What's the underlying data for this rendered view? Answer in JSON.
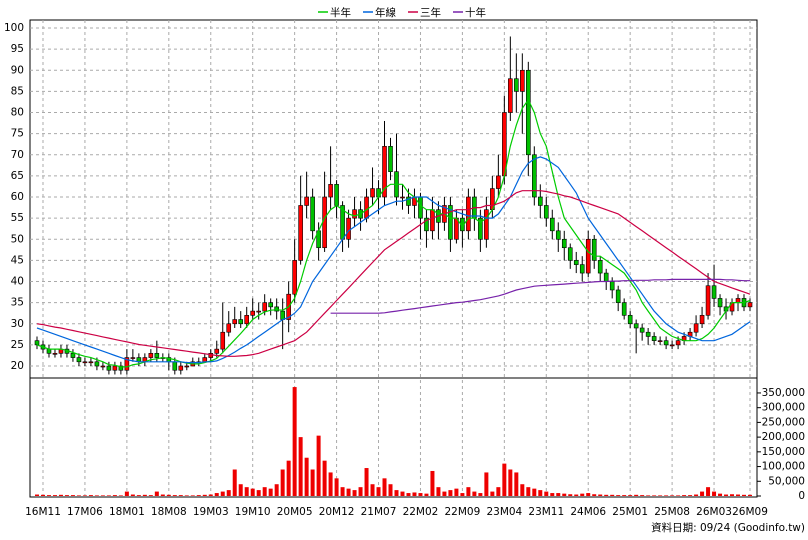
{
  "chart_data": {
    "type": "candlestick",
    "categories": [
      null,
      "16M11",
      null,
      null,
      null,
      null,
      null,
      null,
      "17M06",
      null,
      null,
      null,
      null,
      null,
      null,
      "18M01",
      null,
      null,
      null,
      null,
      null,
      null,
      "18M08",
      null,
      null,
      null,
      null,
      null,
      null,
      "19M03",
      null,
      null,
      null,
      null,
      null,
      null,
      "19M10",
      null,
      null,
      null,
      null,
      null,
      null,
      "20M05",
      null,
      null,
      null,
      null,
      null,
      null,
      "20M12",
      null,
      null,
      null,
      null,
      null,
      null,
      "21M07",
      null,
      null,
      null,
      null,
      null,
      null,
      "22M02",
      null,
      null,
      null,
      null,
      null,
      null,
      "22M09",
      null,
      null,
      null,
      null,
      null,
      null,
      "23M04",
      null,
      null,
      null,
      null,
      null,
      null,
      "23M11",
      null,
      null,
      null,
      null,
      null,
      null,
      "24M06",
      null,
      null,
      null,
      null,
      null,
      null,
      "25M01",
      null,
      null,
      null,
      null,
      null,
      null,
      "25M08",
      null,
      null,
      null,
      null,
      null,
      null,
      "26M03",
      null,
      null,
      null,
      null,
      null,
      "26M09"
    ],
    "candles": {
      "up_color": "#ff0000",
      "down_color": "#00c000",
      "open": [
        26,
        25,
        24,
        23,
        23,
        24,
        23,
        22,
        21,
        21,
        21,
        20,
        20,
        19,
        20,
        19,
        22,
        22,
        21,
        22,
        23,
        22,
        22,
        21,
        19,
        20,
        20,
        21,
        21,
        22,
        23,
        24,
        28,
        30,
        31,
        30,
        32,
        33,
        33,
        35,
        34,
        33,
        31,
        37,
        45,
        58,
        60,
        52,
        48,
        60,
        63,
        58,
        50,
        55,
        57,
        55,
        60,
        62,
        60,
        72,
        66,
        60,
        60,
        58,
        60,
        55,
        52,
        57,
        54,
        58,
        50,
        55,
        52,
        60,
        55,
        50,
        57,
        62,
        65,
        80,
        88,
        85,
        90,
        70,
        60,
        58,
        55,
        52,
        50,
        48,
        45,
        44,
        42,
        50,
        45,
        42,
        40,
        38,
        35,
        32,
        30,
        29,
        28,
        27,
        26,
        26,
        25,
        25,
        26,
        27,
        28,
        30,
        32,
        39,
        36,
        34,
        33,
        35,
        36,
        34
      ],
      "high": [
        27,
        26,
        25,
        24,
        25,
        25,
        24,
        23,
        22,
        22,
        22,
        21,
        21,
        21,
        21,
        24,
        24,
        23,
        23,
        24,
        26,
        23,
        23,
        22,
        21,
        21,
        22,
        22,
        23,
        24,
        26,
        35,
        33,
        34,
        33,
        34,
        36,
        35,
        37,
        36,
        36,
        36,
        40,
        50,
        65,
        66,
        62,
        54,
        66,
        72,
        64,
        59,
        57,
        60,
        59,
        62,
        67,
        64,
        78,
        74,
        75,
        63,
        62,
        62,
        61,
        57,
        60,
        59,
        60,
        60,
        57,
        57,
        62,
        62,
        57,
        60,
        65,
        70,
        84,
        98,
        94,
        94,
        92,
        72,
        63,
        60,
        57,
        54,
        52,
        49,
        47,
        46,
        52,
        51,
        46,
        43,
        41,
        39,
        36,
        33,
        31,
        30,
        29,
        28,
        27,
        27,
        26,
        27,
        28,
        29,
        32,
        34,
        42,
        44,
        37,
        36,
        36,
        37,
        37,
        36
      ],
      "low": [
        24,
        23,
        22,
        22,
        22,
        22,
        21,
        20,
        20,
        20,
        19,
        19,
        18,
        18,
        18,
        18,
        21,
        20,
        20,
        21,
        21,
        21,
        19,
        18,
        18,
        19,
        20,
        20,
        21,
        21,
        22,
        23,
        27,
        29,
        29,
        29,
        31,
        31,
        32,
        32,
        31,
        24,
        28,
        35,
        44,
        55,
        50,
        45,
        47,
        57,
        55,
        47,
        48,
        53,
        52,
        54,
        58,
        56,
        58,
        64,
        58,
        57,
        56,
        55,
        50,
        48,
        50,
        50,
        52,
        47,
        49,
        48,
        50,
        52,
        47,
        48,
        55,
        60,
        63,
        78,
        80,
        75,
        65,
        58,
        55,
        53,
        50,
        47,
        45,
        43,
        42,
        40,
        41,
        43,
        40,
        38,
        36,
        33,
        31,
        29,
        23,
        26,
        25,
        25,
        25,
        24,
        24,
        24,
        25,
        26,
        27,
        29,
        31,
        34,
        32,
        31,
        32,
        33,
        33,
        33
      ],
      "close": [
        25,
        24,
        23,
        23,
        24,
        23,
        22,
        21,
        21,
        21,
        20,
        20,
        19,
        20,
        19,
        22,
        22,
        21,
        22,
        23,
        22,
        22,
        21,
        19,
        20,
        20,
        21,
        21,
        22,
        23,
        24,
        28,
        30,
        31,
        30,
        32,
        33,
        33,
        35,
        34,
        33,
        31,
        37,
        45,
        58,
        60,
        52,
        48,
        60,
        63,
        58,
        50,
        55,
        57,
        55,
        60,
        62,
        60,
        72,
        66,
        60,
        60,
        58,
        60,
        55,
        52,
        57,
        54,
        58,
        50,
        55,
        52,
        60,
        55,
        50,
        57,
        62,
        65,
        80,
        88,
        85,
        90,
        70,
        60,
        58,
        55,
        52,
        50,
        48,
        45,
        44,
        42,
        50,
        45,
        42,
        40,
        38,
        35,
        32,
        30,
        29,
        28,
        27,
        26,
        26,
        25,
        25,
        26,
        27,
        28,
        30,
        32,
        39,
        36,
        34,
        33,
        35,
        36,
        34,
        35
      ]
    },
    "series": [
      {
        "name": "半年",
        "color": "#00cc00",
        "values": [
          25,
          24.5,
          24,
          24,
          24,
          23.7,
          23.2,
          22.7,
          22.3,
          22,
          21.5,
          21,
          20.3,
          20.2,
          19.8,
          19.8,
          20.3,
          20.5,
          21,
          21.5,
          21.7,
          22,
          21.8,
          21.5,
          21,
          20.7,
          20.5,
          20.5,
          20.8,
          21.2,
          21.8,
          23.2,
          24.7,
          26.2,
          27.7,
          29.3,
          31,
          32,
          32.8,
          33.2,
          33.3,
          33.2,
          34,
          36,
          40,
          45,
          49,
          52,
          55,
          57,
          58,
          57,
          56,
          55.5,
          56,
          57,
          58,
          60,
          62,
          63,
          63,
          63,
          61,
          60,
          58,
          57,
          57,
          56,
          56,
          55,
          55,
          53,
          55,
          55,
          54,
          55,
          57,
          60,
          65,
          72,
          77,
          81,
          83,
          80,
          75,
          72,
          66,
          60,
          55,
          53,
          51,
          49,
          47,
          46,
          46,
          45,
          44,
          43,
          42,
          40,
          38,
          35,
          33,
          31,
          29,
          28,
          27,
          26.5,
          26,
          26,
          26,
          26.5,
          27.5,
          29,
          31,
          33,
          35,
          35,
          35,
          35.5
        ]
      },
      {
        "name": "年線",
        "color": "#0066dd",
        "values": [
          29,
          28.5,
          28,
          27.5,
          27,
          26.5,
          26,
          25.5,
          25,
          24.5,
          24,
          23.5,
          23,
          22.5,
          22,
          21.5,
          21.2,
          21,
          21,
          21,
          21,
          21,
          21,
          21,
          21,
          20.8,
          20.8,
          20.8,
          21,
          21,
          21.2,
          21.8,
          22.5,
          23.3,
          24.2,
          25,
          26,
          27,
          28,
          29,
          30,
          31,
          31.5,
          32.5,
          34,
          37,
          40,
          42,
          44,
          46,
          48,
          50,
          52,
          53,
          54,
          55,
          56,
          57,
          58,
          58.5,
          59,
          59,
          59.5,
          60,
          60,
          60,
          59,
          58,
          57.5,
          57,
          56.5,
          56,
          55.5,
          55.5,
          55.5,
          55,
          55,
          56,
          58,
          60,
          63,
          66,
          68,
          69,
          69.5,
          69,
          68,
          67,
          65,
          63,
          61,
          58,
          55,
          53,
          51,
          49,
          47,
          45,
          43,
          41,
          39,
          37,
          35,
          33,
          31.5,
          30,
          29,
          28,
          27.5,
          27,
          26.5,
          26,
          26,
          26,
          26.5,
          27,
          27.5,
          28.5,
          29.5,
          30.5
        ]
      },
      {
        "name": "三年",
        "color": "#cc0044",
        "values": [
          30,
          29.8,
          29.5,
          29.2,
          29,
          28.7,
          28.4,
          28.1,
          27.8,
          27.5,
          27.2,
          26.9,
          26.6,
          26.3,
          26,
          25.7,
          25.4,
          25.1,
          24.9,
          24.7,
          24.5,
          24.3,
          24.1,
          23.9,
          23.7,
          23.5,
          23.3,
          23.1,
          22.9,
          22.7,
          22.5,
          22.4,
          22.3,
          22.3,
          22.4,
          22.5,
          22.7,
          23,
          23.5,
          24,
          24.5,
          25,
          25.5,
          26,
          27,
          28,
          29.5,
          31,
          32.5,
          34,
          35.5,
          37,
          38.5,
          40,
          41.5,
          43,
          44.5,
          46,
          47.5,
          48.5,
          49.5,
          50.5,
          51.5,
          52.5,
          53.5,
          54.5,
          55,
          55.5,
          56,
          56.5,
          57,
          57,
          57,
          57.5,
          57.5,
          58,
          58,
          58.5,
          59,
          60,
          61,
          61.5,
          61.5,
          61.5,
          61.5,
          61.3,
          61,
          60.7,
          60.3,
          60,
          59.5,
          59,
          58.5,
          58,
          57.5,
          57,
          56.5,
          56,
          55,
          54,
          53,
          52,
          51,
          50,
          49,
          48,
          47,
          46,
          45,
          44,
          43,
          42,
          41,
          40,
          39.5,
          39,
          38.5,
          38,
          37.5,
          37
        ]
      },
      {
        "name": "十年",
        "color": "#7722aa",
        "values": [
          null,
          null,
          null,
          null,
          null,
          null,
          null,
          null,
          null,
          null,
          null,
          null,
          null,
          null,
          null,
          null,
          null,
          null,
          null,
          null,
          null,
          null,
          null,
          null,
          null,
          null,
          null,
          null,
          null,
          null,
          null,
          null,
          null,
          null,
          null,
          null,
          null,
          null,
          null,
          null,
          null,
          null,
          null,
          null,
          null,
          null,
          null,
          null,
          null,
          32.5,
          32.5,
          32.5,
          32.5,
          32.5,
          32.5,
          32.5,
          32.5,
          32.5,
          32.6,
          32.8,
          33,
          33.2,
          33.4,
          33.6,
          33.8,
          34,
          34.2,
          34.4,
          34.6,
          34.8,
          35,
          35.1,
          35.3,
          35.5,
          35.7,
          36,
          36.3,
          36.6,
          37,
          37.5,
          38,
          38.3,
          38.6,
          38.9,
          39,
          39.1,
          39.2,
          39.3,
          39.4,
          39.5,
          39.6,
          39.7,
          39.8,
          39.9,
          40,
          40,
          40.1,
          40.1,
          40.2,
          40.2,
          40.3,
          40.3,
          40.3,
          40.4,
          40.4,
          40.4,
          40.5,
          40.5,
          40.5,
          40.5,
          40.5,
          40.5,
          40.5,
          40.5,
          40.5,
          40.4,
          40.4,
          40.3,
          40.2,
          40.2
        ]
      }
    ],
    "ylim": [
      17.4,
      101.9
    ],
    "yticks": [
      20,
      25,
      30,
      35,
      40,
      45,
      50,
      55,
      60,
      65,
      70,
      75,
      80,
      85,
      90,
      95,
      100
    ],
    "grid": true,
    "volume": {
      "color": "#ee0000",
      "values": [
        5000,
        4000,
        3000,
        3000,
        4000,
        3000,
        3000,
        2000,
        2000,
        3000,
        2000,
        2000,
        2000,
        3000,
        2000,
        15000,
        5000,
        3000,
        4000,
        3000,
        15000,
        5000,
        4000,
        3000,
        3000,
        2000,
        2000,
        3000,
        4000,
        5000,
        10000,
        15000,
        20000,
        90000,
        40000,
        30000,
        25000,
        20000,
        30000,
        25000,
        40000,
        90000,
        120000,
        370000,
        200000,
        130000,
        90000,
        205000,
        120000,
        80000,
        60000,
        30000,
        25000,
        20000,
        30000,
        95000,
        40000,
        30000,
        60000,
        40000,
        20000,
        15000,
        10000,
        12000,
        10000,
        8000,
        85000,
        30000,
        15000,
        20000,
        25000,
        10000,
        30000,
        15000,
        10000,
        80000,
        15000,
        30000,
        110000,
        90000,
        80000,
        40000,
        30000,
        25000,
        20000,
        15000,
        10000,
        10000,
        8000,
        6000,
        5000,
        8000,
        10000,
        6000,
        5000,
        4000,
        4000,
        3000,
        3000,
        3000,
        4000,
        3000,
        2000,
        2000,
        2000,
        2000,
        2000,
        2000,
        3000,
        3000,
        5000,
        15000,
        30000,
        15000,
        8000,
        5000,
        6000,
        5000,
        4000,
        4000
      ],
      "ylim": [
        0,
        394000
      ],
      "yticks": [
        0,
        {
          "value": 50000,
          "label": "50,000"
        },
        {
          "value": 100000,
          "label": "100,000"
        },
        {
          "value": 150000,
          "label": "150,000"
        },
        {
          "value": 200000,
          "label": "200,000"
        },
        {
          "value": 250000,
          "label": "250,000"
        },
        {
          "value": 300000,
          "label": "300,000"
        },
        {
          "value": 350000,
          "label": "350,000"
        }
      ]
    },
    "source": "資料日期: 09/24 (Goodinfo.tw)"
  }
}
